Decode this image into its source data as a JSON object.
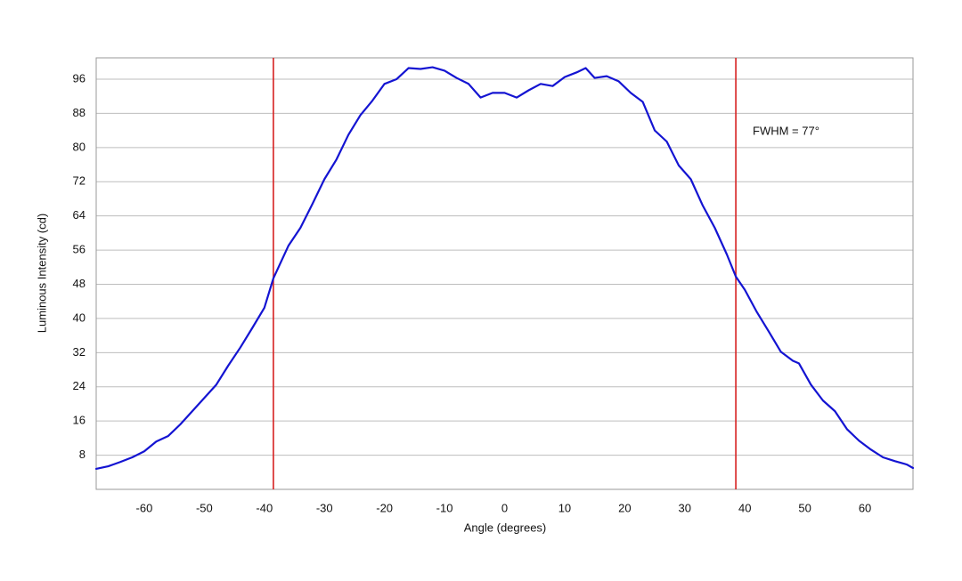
{
  "chart_data": {
    "type": "line",
    "x_label": "Angle (degrees)",
    "y_label": "Luminous Intensity (cd)",
    "x": [
      -68,
      -66,
      -64,
      -62,
      -60,
      -58,
      -56,
      -54,
      -52,
      -50,
      -48,
      -46,
      -44,
      -42,
      -40,
      -38.5,
      -36,
      -34,
      -32,
      -30,
      -28,
      -26,
      -24,
      -22,
      -20,
      -18,
      -16,
      -14,
      -12,
      -10,
      -8,
      -6,
      -4,
      -2,
      0,
      2,
      4,
      6,
      8,
      10,
      12,
      13.5,
      15,
      17,
      19,
      21,
      23,
      25,
      27,
      29,
      31,
      33,
      35,
      37,
      38.5,
      40,
      42,
      44,
      46,
      48,
      49,
      51,
      53,
      55,
      57,
      59,
      61,
      63,
      65,
      67,
      68
    ],
    "values": [
      4.8,
      5.4,
      6.4,
      7.5,
      8.9,
      11.2,
      12.5,
      15.2,
      18.3,
      21.4,
      24.5,
      29,
      33.2,
      37.8,
      42.5,
      49.4,
      57,
      61.2,
      66.8,
      72.6,
      77.2,
      83,
      87.6,
      91,
      94.9,
      96,
      98.6,
      98.4,
      98.8,
      98,
      96.3,
      94.9,
      91.7,
      92.8,
      92.8,
      91.7,
      93.4,
      94.9,
      94.4,
      96.5,
      97.6,
      98.6,
      96.3,
      96.7,
      95.5,
      92.8,
      90.7,
      84,
      81.4,
      75.8,
      72.6,
      66.4,
      61.2,
      55,
      49.8,
      46.7,
      41.5,
      36.9,
      32.2,
      30.1,
      29.5,
      24.5,
      20.8,
      18.3,
      14.1,
      11.4,
      9.3,
      7.5,
      6.6,
      5.8,
      5
    ],
    "color": "#1414d2",
    "vlines": [
      -38.5,
      38.5
    ],
    "vline_color": "#d62020",
    "annotation": "FWHM = 77°",
    "xlim": [
      -68,
      68
    ],
    "ylim": [
      0,
      101
    ],
    "xticks": [
      -60,
      -50,
      -40,
      -30,
      -20,
      -10,
      0,
      10,
      20,
      30,
      40,
      50,
      60
    ],
    "yticks": [
      8,
      16,
      24,
      32,
      40,
      48,
      56,
      64,
      72,
      80,
      88,
      96
    ],
    "grid": true
  }
}
